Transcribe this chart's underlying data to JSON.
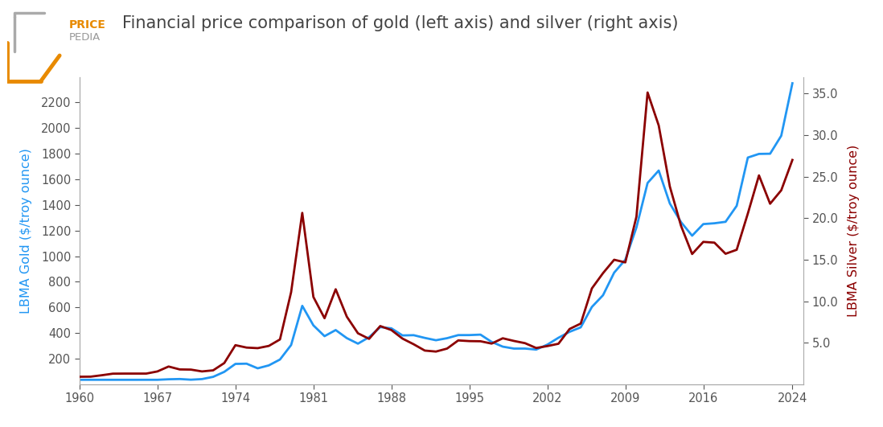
{
  "title": "Financial price comparison of gold (left axis) and silver (right axis)",
  "ylabel_left": "LBMA Gold ($/troy ounce)",
  "ylabel_right": "LBMA Silver ($/troy ounce)",
  "gold_color": "#2196f3",
  "silver_color": "#8b0000",
  "years": [
    1960,
    1961,
    1962,
    1963,
    1964,
    1965,
    1966,
    1967,
    1968,
    1969,
    1970,
    1971,
    1972,
    1973,
    1974,
    1975,
    1976,
    1977,
    1978,
    1979,
    1980,
    1981,
    1982,
    1983,
    1984,
    1985,
    1986,
    1987,
    1988,
    1989,
    1990,
    1991,
    1992,
    1993,
    1994,
    1995,
    1996,
    1997,
    1998,
    1999,
    2000,
    2001,
    2002,
    2003,
    2004,
    2005,
    2006,
    2007,
    2008,
    2009,
    2010,
    2011,
    2012,
    2013,
    2014,
    2015,
    2016,
    2017,
    2018,
    2019,
    2020,
    2021,
    2022,
    2023,
    2024
  ],
  "gold": [
    35.2,
    35.2,
    35.2,
    35.1,
    35.1,
    35.1,
    35.2,
    35.2,
    39.3,
    41.3,
    36.0,
    40.8,
    58.2,
    97.3,
    159.3,
    161.0,
    124.8,
    147.8,
    193.5,
    306.7,
    612.6,
    460.0,
    375.8,
    423.5,
    360.5,
    317.3,
    367.9,
    446.5,
    437.0,
    381.5,
    383.5,
    362.2,
    344.0,
    360.0,
    384.0,
    384.2,
    387.8,
    331.0,
    294.0,
    278.8,
    279.0,
    271.0,
    309.7,
    363.4,
    409.7,
    444.7,
    603.8,
    695.4,
    871.7,
    972.4,
    1224.5,
    1571.5,
    1668.7,
    1411.2,
    1266.1,
    1160.1,
    1250.7,
    1257.1,
    1268.5,
    1393.3,
    1770.0,
    1798.6,
    1800.0,
    1940.5,
    2350.0
  ],
  "silver": [
    0.91,
    0.92,
    1.09,
    1.28,
    1.29,
    1.29,
    1.29,
    1.55,
    2.14,
    1.79,
    1.77,
    1.55,
    1.68,
    2.56,
    4.71,
    4.42,
    4.35,
    4.62,
    5.4,
    11.09,
    20.63,
    10.51,
    7.95,
    11.44,
    8.14,
    6.14,
    5.47,
    7.01,
    6.53,
    5.5,
    4.82,
    4.06,
    3.94,
    4.3,
    5.28,
    5.2,
    5.18,
    4.9,
    5.54,
    5.22,
    4.95,
    4.37,
    4.6,
    4.88,
    6.66,
    7.31,
    11.54,
    13.38,
    14.99,
    14.67,
    20.18,
    35.12,
    31.15,
    23.79,
    19.08,
    15.68,
    17.14,
    17.05,
    15.71,
    16.19,
    20.55,
    25.14,
    21.73,
    23.35,
    27.0
  ],
  "gold_ylim": [
    0,
    2400
  ],
  "silver_ylim": [
    0,
    37.0
  ],
  "gold_yticks": [
    200,
    400,
    600,
    800,
    1000,
    1200,
    1400,
    1600,
    1800,
    2000,
    2200
  ],
  "silver_yticks": [
    5.0,
    10.0,
    15.0,
    20.0,
    25.0,
    30.0,
    35.0
  ],
  "xticks": [
    1960,
    1967,
    1974,
    1981,
    1988,
    1995,
    2002,
    2009,
    2016,
    2024
  ],
  "xlim": [
    1960,
    2025
  ],
  "linewidth": 2.0,
  "background_color": "#ffffff",
  "spine_color": "#aaaaaa",
  "tick_color": "#555555",
  "title_color": "#444444",
  "title_fontsize": 15,
  "logo_price_color": "#e88a00",
  "logo_pedia_color": "#999999",
  "logo_box_color": "#aaaaaa"
}
